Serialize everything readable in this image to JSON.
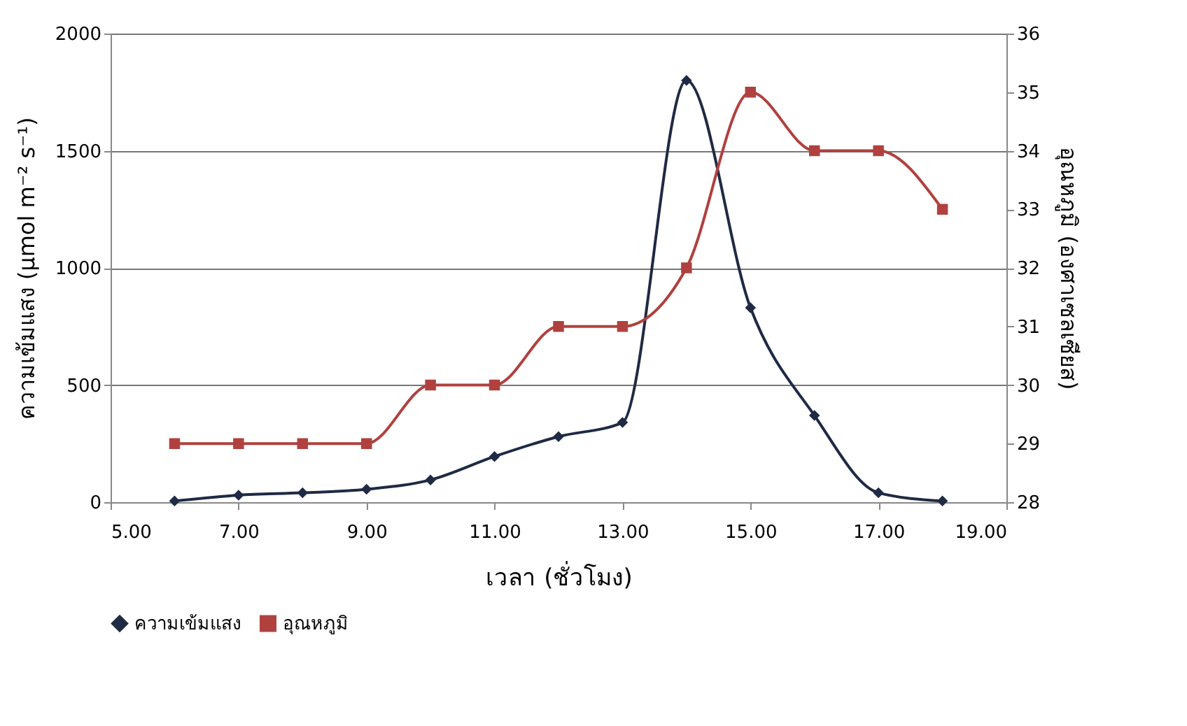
{
  "chart_data": {
    "type": "line",
    "xlabel": "เวลา (ชั่วโมง)",
    "ylabel": "ความเข้มแสง (µmol m⁻² s⁻¹)",
    "y2label": "อุณหภูมิ (องศาเซลเซียส)",
    "x": [
      6,
      7,
      8,
      9,
      10,
      11,
      12,
      13,
      14,
      15,
      16,
      17,
      18
    ],
    "series": [
      {
        "name": "ความเข้มแสง",
        "color": "#1f2a44",
        "marker": "diamond",
        "values": [
          5,
          30,
          40,
          55,
          95,
          195,
          280,
          340,
          1800,
          830,
          370,
          40,
          5
        ]
      },
      {
        "name": "อุณหภูมิ",
        "color": "#b0413e",
        "marker": "square",
        "axis": "y2",
        "values": [
          29,
          29,
          29,
          29,
          30,
          30,
          31,
          31,
          32,
          35,
          34,
          34,
          33
        ]
      }
    ],
    "xlim": [
      5,
      19
    ],
    "xticks": [
      {
        "value": 5,
        "label": "5.00"
      },
      {
        "value": 7,
        "label": "7.00"
      },
      {
        "value": 9,
        "label": "9.00"
      },
      {
        "value": 11,
        "label": "11.00"
      },
      {
        "value": 13,
        "label": "13.00"
      },
      {
        "value": 15,
        "label": "15.00"
      },
      {
        "value": 17,
        "label": "17.00"
      },
      {
        "value": 19,
        "label": "19.00"
      }
    ],
    "ylim": [
      0,
      2000
    ],
    "yticks": [
      0,
      500,
      1000,
      1500,
      2000
    ],
    "y2lim": [
      28,
      36
    ],
    "y2ticks": [
      28,
      29,
      30,
      31,
      32,
      33,
      34,
      35,
      36
    ],
    "grid": "y",
    "legend": "bottom"
  }
}
